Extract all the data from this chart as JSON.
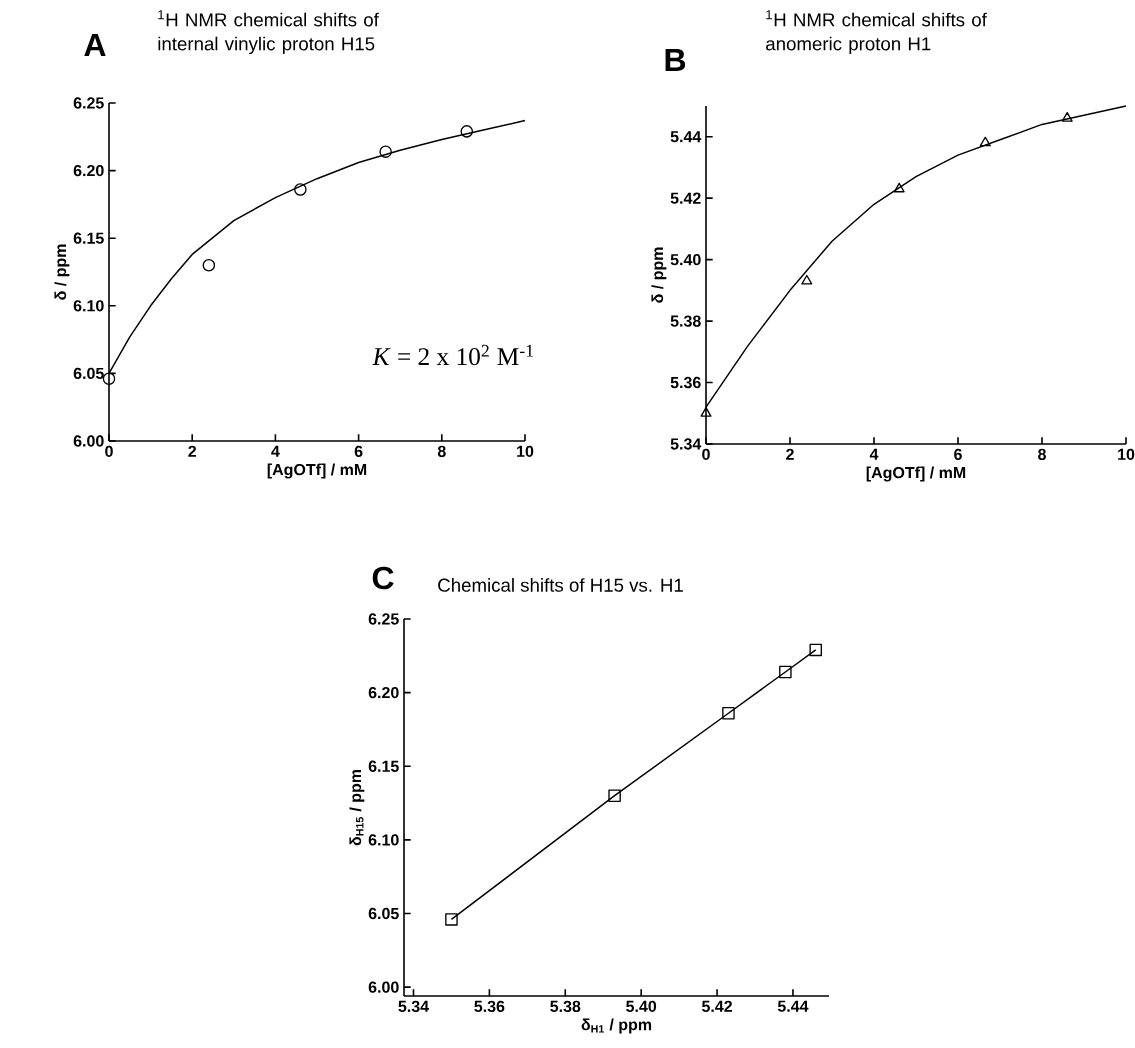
{
  "chart_data": [
    {
      "type": "scatter",
      "title": "$^{1}$H NMR chemical shifts of internal vinylic proton H15",
      "xlabel": "[AgOTf]  /  mM",
      "ylabel": "δ  /  ppm",
      "annotations": [
        "A",
        "*K* = 2 x 10$^{2}$ M$^{-1}$"
      ],
      "xlim": [
        0,
        10
      ],
      "ylim": [
        6.0,
        6.25
      ],
      "xticks": [
        0,
        2,
        4,
        6,
        8,
        10
      ],
      "yticks": [
        {
          "value": 6.0,
          "label": "6.00"
        },
        6.05,
        {
          "value": 6.1,
          "label": "6.10"
        },
        6.15,
        {
          "value": 6.2,
          "label": "6.20"
        },
        6.25
      ],
      "series": [
        {
          "marker": "circle",
          "color": "#000000",
          "x": [
            0,
            2.4,
            4.6,
            6.65,
            8.6
          ],
          "values": [
            6.046,
            6.13,
            6.186,
            6.214,
            6.229
          ]
        },
        {
          "type": "line",
          "marker": "none",
          "color": "#000000",
          "x": [
            0,
            0.5,
            1,
            1.5,
            2,
            3,
            4,
            5,
            6,
            7,
            8,
            9,
            10
          ],
          "values": [
            6.05,
            6.077,
            6.1,
            6.12,
            6.138,
            6.163,
            6.18,
            6.194,
            6.206,
            6.215,
            6.223,
            6.23,
            6.237
          ]
        }
      ]
    },
    {
      "type": "scatter",
      "title": "$^{1}$H NMR chemical shifts of anomeric proton H1",
      "xlabel": "[AgOTf]  /  mM",
      "ylabel": "δ  /  ppm",
      "annotations": [
        "B"
      ],
      "xlim": [
        0,
        10
      ],
      "ylim": [
        5.34,
        5.45
      ],
      "xticks": [
        0,
        2,
        4,
        6,
        8,
        10
      ],
      "yticks": [
        5.34,
        5.36,
        5.38,
        {
          "value": 5.4,
          "label": "5.40"
        },
        5.42,
        5.44
      ],
      "series": [
        {
          "marker": "triangle",
          "color": "#000000",
          "x": [
            0,
            2.4,
            4.6,
            6.65,
            8.6
          ],
          "values": [
            5.35,
            5.393,
            5.423,
            5.438,
            5.446
          ]
        },
        {
          "type": "line",
          "marker": "none",
          "color": "#000000",
          "x": [
            0,
            0.5,
            1,
            1.5,
            2,
            3,
            4,
            5,
            6,
            7,
            8,
            9,
            10
          ],
          "values": [
            5.352,
            5.362,
            5.372,
            5.381,
            5.39,
            5.406,
            5.418,
            5.427,
            5.434,
            5.439,
            5.444,
            5.447,
            5.45
          ]
        }
      ]
    },
    {
      "type": "line",
      "title": "Chemical shifts of H15 vs. H1",
      "xlabel": "δ$_{H1}$  /  ppm",
      "ylabel": "δ$_{H15}$  /  ppm",
      "annotations": [
        "C"
      ],
      "xlim": [
        5.3375,
        5.4495
      ],
      "ylim": [
        5.994,
        6.25
      ],
      "xticks": [
        5.34,
        5.36,
        5.38,
        {
          "value": 5.4,
          "label": "5.40"
        },
        5.42,
        5.44
      ],
      "yticks": [
        {
          "value": 6.0,
          "label": "6.00"
        },
        6.05,
        {
          "value": 6.1,
          "label": "6.10"
        },
        6.15,
        {
          "value": 6.2,
          "label": "6.20"
        },
        6.25
      ],
      "series": [
        {
          "marker": "square",
          "color": "#000000",
          "x": [
            5.35,
            5.393,
            5.423,
            5.438,
            5.446
          ],
          "values": [
            6.046,
            6.13,
            6.186,
            6.214,
            6.229
          ]
        }
      ]
    }
  ]
}
